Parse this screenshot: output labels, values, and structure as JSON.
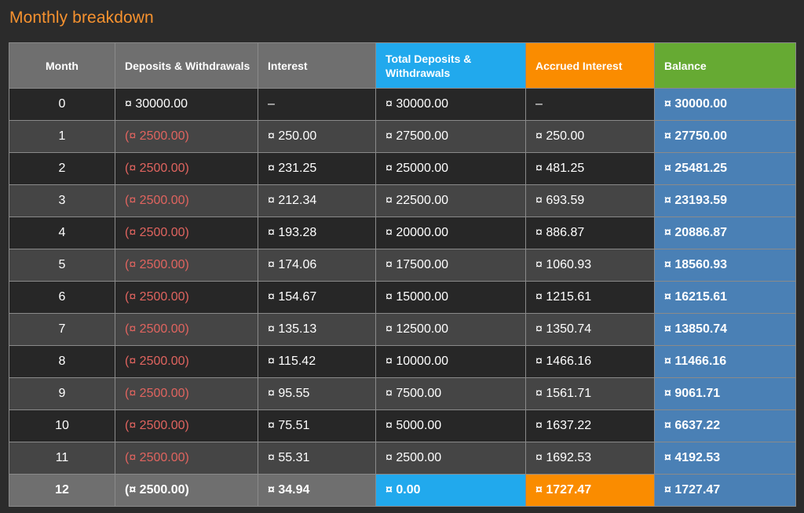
{
  "title": "Monthly breakdown",
  "columns": [
    "Month",
    "Deposits & Withdrawals",
    "Interest",
    "Total Deposits & Withdrawals",
    "Accrued Interest",
    "Balance"
  ],
  "rows": [
    {
      "month": "0",
      "deposits": "¤ 30000.00",
      "interest": "–",
      "total": "¤ 30000.00",
      "accrued": "–",
      "balance": "¤ 30000.00",
      "negative": false
    },
    {
      "month": "1",
      "deposits": "(¤ 2500.00)",
      "interest": "¤ 250.00",
      "total": "¤ 27500.00",
      "accrued": "¤ 250.00",
      "balance": "¤ 27750.00",
      "negative": true
    },
    {
      "month": "2",
      "deposits": "(¤ 2500.00)",
      "interest": "¤ 231.25",
      "total": "¤ 25000.00",
      "accrued": "¤ 481.25",
      "balance": "¤ 25481.25",
      "negative": true
    },
    {
      "month": "3",
      "deposits": "(¤ 2500.00)",
      "interest": "¤ 212.34",
      "total": "¤ 22500.00",
      "accrued": "¤ 693.59",
      "balance": "¤ 23193.59",
      "negative": true
    },
    {
      "month": "4",
      "deposits": "(¤ 2500.00)",
      "interest": "¤ 193.28",
      "total": "¤ 20000.00",
      "accrued": "¤ 886.87",
      "balance": "¤ 20886.87",
      "negative": true
    },
    {
      "month": "5",
      "deposits": "(¤ 2500.00)",
      "interest": "¤ 174.06",
      "total": "¤ 17500.00",
      "accrued": "¤ 1060.93",
      "balance": "¤ 18560.93",
      "negative": true
    },
    {
      "month": "6",
      "deposits": "(¤ 2500.00)",
      "interest": "¤ 154.67",
      "total": "¤ 15000.00",
      "accrued": "¤ 1215.61",
      "balance": "¤ 16215.61",
      "negative": true
    },
    {
      "month": "7",
      "deposits": "(¤ 2500.00)",
      "interest": "¤ 135.13",
      "total": "¤ 12500.00",
      "accrued": "¤ 1350.74",
      "balance": "¤ 13850.74",
      "negative": true
    },
    {
      "month": "8",
      "deposits": "(¤ 2500.00)",
      "interest": "¤ 115.42",
      "total": "¤ 10000.00",
      "accrued": "¤ 1466.16",
      "balance": "¤ 11466.16",
      "negative": true
    },
    {
      "month": "9",
      "deposits": "(¤ 2500.00)",
      "interest": "¤ 95.55",
      "total": "¤ 7500.00",
      "accrued": "¤ 1561.71",
      "balance": "¤ 9061.71",
      "negative": true
    },
    {
      "month": "10",
      "deposits": "(¤ 2500.00)",
      "interest": "¤ 75.51",
      "total": "¤ 5000.00",
      "accrued": "¤ 1637.22",
      "balance": "¤ 6637.22",
      "negative": true
    },
    {
      "month": "11",
      "deposits": "(¤ 2500.00)",
      "interest": "¤ 55.31",
      "total": "¤ 2500.00",
      "accrued": "¤ 1692.53",
      "balance": "¤ 4192.53",
      "negative": true
    }
  ],
  "total_row": {
    "month": "12",
    "deposits": "(¤ 2500.00)",
    "interest": "¤ 34.94",
    "total": "¤ 0.00",
    "accrued": "¤ 1727.47",
    "balance": "¤ 1727.47"
  },
  "colors": {
    "title": "#f7922f",
    "background": "#2b2b2b",
    "header_gray": "#6f6f6f",
    "header_blue": "#21a9ed",
    "header_orange": "#fa8c00",
    "header_green": "#66aa33",
    "balance_blue": "#4a80b5",
    "row_dark": "#272727",
    "row_light": "#454545",
    "negative_text": "#e0645f"
  }
}
